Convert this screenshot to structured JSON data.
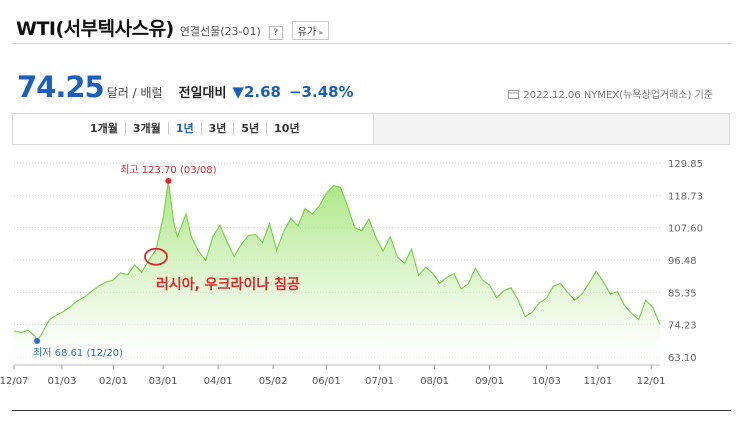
{
  "header": {
    "title": "WTI(서부텍사스유)",
    "subtitle": "연결선물(23-01)",
    "help": "?",
    "oil_button": "유가"
  },
  "quote": {
    "price": "74.25",
    "unit": "달러 / 배럴",
    "compare_label": "전일대비",
    "change": "2.68",
    "change_pct": "−3.48%",
    "as_of": "2022.12.06 NYMEX(뉴욕상업거래소) 기준"
  },
  "tabs": [
    {
      "label": "1개월",
      "selected": false
    },
    {
      "label": "3개월",
      "selected": false
    },
    {
      "label": "1년",
      "selected": true
    },
    {
      "label": "3년",
      "selected": false
    },
    {
      "label": "5년",
      "selected": false
    },
    {
      "label": "10년",
      "selected": false
    }
  ],
  "colors": {
    "line": "#7cd24a",
    "fill_top": "#9be26d",
    "max_marker": "#e0252b",
    "min_marker": "#2a6fc9",
    "annotation": "#e0252b",
    "accent": "#1a5fbf"
  },
  "chart_data": {
    "type": "area",
    "ylim": [
      63.1,
      129.85
    ],
    "y_ticks": [
      "129.85",
      "118.73",
      "107.60",
      "96.48",
      "85.35",
      "74.23",
      "63.10"
    ],
    "x_ticks": [
      {
        "label": "12/07",
        "x": 0
      },
      {
        "label": "01/03",
        "x": 27
      },
      {
        "label": "02/01",
        "x": 56
      },
      {
        "label": "03/01",
        "x": 84
      },
      {
        "label": "04/01",
        "x": 115
      },
      {
        "label": "05/02",
        "x": 146
      },
      {
        "label": "06/01",
        "x": 176
      },
      {
        "label": "07/01",
        "x": 206
      },
      {
        "label": "08/01",
        "x": 237
      },
      {
        "label": "09/01",
        "x": 268
      },
      {
        "label": "10/03",
        "x": 300
      },
      {
        "label": "11/01",
        "x": 329
      },
      {
        "label": "12/01",
        "x": 359
      }
    ],
    "x_days": [
      0,
      4,
      8,
      12,
      13,
      16,
      20,
      24,
      28,
      32,
      36,
      40,
      44,
      48,
      52,
      56,
      60,
      64,
      68,
      72,
      76,
      80,
      84,
      87,
      90,
      92,
      94,
      97,
      100,
      104,
      108,
      112,
      116,
      120,
      124,
      128,
      132,
      136,
      140,
      144,
      148,
      152,
      156,
      160,
      164,
      168,
      172,
      176,
      180,
      184,
      188,
      192,
      196,
      200,
      204,
      208,
      212,
      216,
      220,
      224,
      228,
      232,
      236,
      240,
      244,
      248,
      252,
      256,
      260,
      264,
      268,
      272,
      276,
      280,
      284,
      288,
      292,
      296,
      300,
      304,
      308,
      312,
      316,
      320,
      324,
      328,
      332,
      336,
      340,
      344,
      348,
      352,
      356,
      360,
      364
    ],
    "values": [
      72.1,
      71.5,
      72.3,
      70.2,
      68.61,
      71.5,
      76.0,
      77.5,
      78.8,
      80.5,
      82.5,
      83.8,
      85.9,
      87.6,
      88.9,
      89.6,
      92.0,
      91.4,
      94.8,
      92.3,
      96.5,
      100.0,
      111.0,
      123.7,
      109.4,
      104.5,
      107.6,
      112.3,
      104.3,
      99.5,
      96.3,
      104.5,
      108.4,
      102.8,
      97.7,
      101.8,
      104.9,
      105.3,
      102.5,
      109.0,
      99.8,
      106.4,
      110.8,
      108.2,
      114.2,
      112.3,
      115.1,
      119.4,
      122.1,
      121.5,
      115.0,
      107.6,
      106.5,
      110.6,
      104.2,
      99.5,
      104.5,
      97.6,
      95.3,
      100.2,
      91.2,
      94.0,
      91.9,
      88.5,
      90.5,
      91.8,
      86.5,
      88.3,
      93.7,
      89.6,
      87.8,
      83.5,
      85.9,
      86.9,
      82.9,
      77.0,
      78.5,
      81.7,
      83.3,
      87.5,
      88.4,
      85.3,
      82.6,
      84.7,
      88.5,
      92.6,
      89.1,
      84.8,
      85.6,
      80.9,
      78.1,
      76.0,
      82.6,
      80.2,
      74.25
    ],
    "max": {
      "label": "최고",
      "value": "123.70",
      "date": "(03/08)",
      "day": 87
    },
    "min": {
      "label": "최저",
      "value": "68.61",
      "date": "(12/20)",
      "day": 13
    },
    "annotation": {
      "text": "러시아, 우크라이나 침공",
      "day": 80
    }
  }
}
